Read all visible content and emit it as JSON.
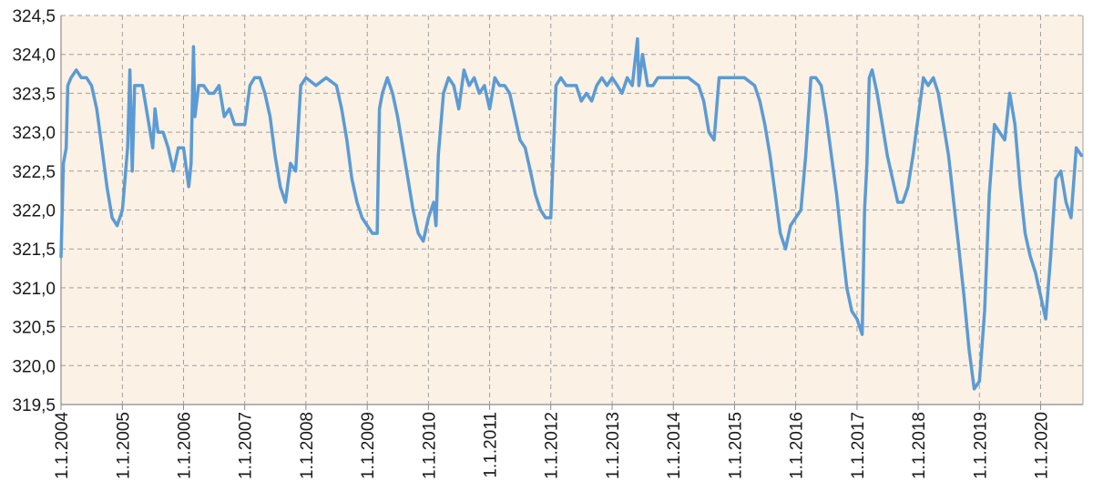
{
  "chart_data": {
    "type": "line",
    "title": "",
    "xlabel": "",
    "ylabel": "",
    "ylim": [
      319.5,
      324.5
    ],
    "yticks": [
      "319,5",
      "320,0",
      "320,5",
      "321,0",
      "321,5",
      "322,0",
      "322,5",
      "323,0",
      "323,5",
      "324,0",
      "324,5"
    ],
    "ytick_values": [
      319.5,
      320.0,
      320.5,
      321.0,
      321.5,
      322.0,
      322.5,
      323.0,
      323.5,
      324.0,
      324.5
    ],
    "xlim": [
      "2004-01-01",
      "2020-09-10"
    ],
    "xticks": [
      "1.1.2004",
      "1.1.2005",
      "1.1.2006",
      "1.1.2007",
      "1.1.2008",
      "1.1.2009",
      "1.1.2010",
      "1.1.2011",
      "1.1.2012",
      "1.1.2013",
      "1.1.2014",
      "1.1.2015",
      "1.1.2016",
      "1.1.2017",
      "1.1.2018",
      "1.1.2019",
      "1.1.2020"
    ],
    "xtick_values": [
      "2004-01-01",
      "2005-01-01",
      "2006-01-01",
      "2007-01-01",
      "2008-01-01",
      "2009-01-01",
      "2010-01-01",
      "2011-01-01",
      "2012-01-01",
      "2013-01-01",
      "2014-01-01",
      "2015-01-01",
      "2016-01-01",
      "2017-01-01",
      "2018-01-01",
      "2019-01-01",
      "2020-01-01"
    ],
    "grid": true,
    "colors": {
      "line": "#5b9bd5",
      "plot_background": "#fbf1e4",
      "grid": "#a0a0a0",
      "axis": "#8c8c8c"
    },
    "series": [
      {
        "values": [
          [
            "2004-01-01",
            321.4
          ],
          [
            "2004-01-15",
            322.6
          ],
          [
            "2004-02-01",
            322.8
          ],
          [
            "2004-02-10",
            323.6
          ],
          [
            "2004-03-01",
            323.7
          ],
          [
            "2004-04-01",
            323.8
          ],
          [
            "2004-05-01",
            323.7
          ],
          [
            "2004-06-01",
            323.7
          ],
          [
            "2004-07-01",
            323.6
          ],
          [
            "2004-08-01",
            323.3
          ],
          [
            "2004-09-01",
            322.8
          ],
          [
            "2004-10-01",
            322.3
          ],
          [
            "2004-11-01",
            321.9
          ],
          [
            "2004-12-01",
            321.8
          ],
          [
            "2005-01-01",
            322.0
          ],
          [
            "2005-02-01",
            322.8
          ],
          [
            "2005-02-15",
            323.8
          ],
          [
            "2005-03-01",
            322.5
          ],
          [
            "2005-03-15",
            323.6
          ],
          [
            "2005-04-01",
            323.6
          ],
          [
            "2005-05-01",
            323.6
          ],
          [
            "2005-06-01",
            323.2
          ],
          [
            "2005-07-01",
            322.8
          ],
          [
            "2005-07-15",
            323.3
          ],
          [
            "2005-08-01",
            323.0
          ],
          [
            "2005-09-01",
            323.0
          ],
          [
            "2005-10-01",
            322.8
          ],
          [
            "2005-11-01",
            322.5
          ],
          [
            "2005-12-01",
            322.8
          ],
          [
            "2006-01-01",
            322.8
          ],
          [
            "2006-02-01",
            322.3
          ],
          [
            "2006-02-15",
            322.6
          ],
          [
            "2006-03-01",
            324.1
          ],
          [
            "2006-03-10",
            323.2
          ],
          [
            "2006-04-01",
            323.6
          ],
          [
            "2006-05-01",
            323.6
          ],
          [
            "2006-06-01",
            323.5
          ],
          [
            "2006-07-01",
            323.5
          ],
          [
            "2006-08-01",
            323.6
          ],
          [
            "2006-09-01",
            323.2
          ],
          [
            "2006-10-01",
            323.3
          ],
          [
            "2006-11-01",
            323.1
          ],
          [
            "2006-12-01",
            323.1
          ],
          [
            "2007-01-01",
            323.1
          ],
          [
            "2007-02-01",
            323.6
          ],
          [
            "2007-03-01",
            323.7
          ],
          [
            "2007-04-01",
            323.7
          ],
          [
            "2007-05-01",
            323.5
          ],
          [
            "2007-06-01",
            323.2
          ],
          [
            "2007-07-01",
            322.7
          ],
          [
            "2007-08-01",
            322.3
          ],
          [
            "2007-09-01",
            322.1
          ],
          [
            "2007-10-01",
            322.6
          ],
          [
            "2007-11-01",
            322.5
          ],
          [
            "2007-12-01",
            323.6
          ],
          [
            "2008-01-01",
            323.7
          ],
          [
            "2008-03-01",
            323.6
          ],
          [
            "2008-05-01",
            323.7
          ],
          [
            "2008-07-01",
            323.6
          ],
          [
            "2008-08-01",
            323.3
          ],
          [
            "2008-09-01",
            322.9
          ],
          [
            "2008-10-01",
            322.4
          ],
          [
            "2008-11-01",
            322.1
          ],
          [
            "2008-12-01",
            321.9
          ],
          [
            "2009-01-01",
            321.8
          ],
          [
            "2009-02-01",
            321.7
          ],
          [
            "2009-03-01",
            321.7
          ],
          [
            "2009-03-15",
            323.3
          ],
          [
            "2009-04-01",
            323.5
          ],
          [
            "2009-05-01",
            323.7
          ],
          [
            "2009-06-01",
            323.5
          ],
          [
            "2009-07-01",
            323.2
          ],
          [
            "2009-08-01",
            322.8
          ],
          [
            "2009-09-01",
            322.4
          ],
          [
            "2009-10-01",
            322.0
          ],
          [
            "2009-11-01",
            321.7
          ],
          [
            "2009-12-01",
            321.6
          ],
          [
            "2010-01-01",
            321.9
          ],
          [
            "2010-02-01",
            322.1
          ],
          [
            "2010-02-15",
            321.8
          ],
          [
            "2010-03-01",
            322.7
          ],
          [
            "2010-04-01",
            323.5
          ],
          [
            "2010-05-01",
            323.7
          ],
          [
            "2010-06-01",
            323.6
          ],
          [
            "2010-07-01",
            323.3
          ],
          [
            "2010-08-01",
            323.8
          ],
          [
            "2010-09-01",
            323.6
          ],
          [
            "2010-10-01",
            323.7
          ],
          [
            "2010-11-01",
            323.5
          ],
          [
            "2010-12-01",
            323.6
          ],
          [
            "2011-01-01",
            323.3
          ],
          [
            "2011-02-01",
            323.7
          ],
          [
            "2011-03-01",
            323.6
          ],
          [
            "2011-04-01",
            323.6
          ],
          [
            "2011-05-01",
            323.5
          ],
          [
            "2011-06-01",
            323.2
          ],
          [
            "2011-07-01",
            322.9
          ],
          [
            "2011-08-01",
            322.8
          ],
          [
            "2011-09-01",
            322.5
          ],
          [
            "2011-10-01",
            322.2
          ],
          [
            "2011-11-01",
            322.0
          ],
          [
            "2011-12-01",
            321.9
          ],
          [
            "2012-01-01",
            321.9
          ],
          [
            "2012-02-01",
            323.6
          ],
          [
            "2012-03-01",
            323.7
          ],
          [
            "2012-04-01",
            323.6
          ],
          [
            "2012-05-01",
            323.6
          ],
          [
            "2012-06-01",
            323.6
          ],
          [
            "2012-07-01",
            323.4
          ],
          [
            "2012-08-01",
            323.5
          ],
          [
            "2012-09-01",
            323.4
          ],
          [
            "2012-10-01",
            323.6
          ],
          [
            "2012-11-01",
            323.7
          ],
          [
            "2012-12-01",
            323.6
          ],
          [
            "2013-01-01",
            323.7
          ],
          [
            "2013-02-01",
            323.6
          ],
          [
            "2013-03-01",
            323.5
          ],
          [
            "2013-04-01",
            323.7
          ],
          [
            "2013-05-01",
            323.6
          ],
          [
            "2013-06-01",
            324.2
          ],
          [
            "2013-06-10",
            323.6
          ],
          [
            "2013-07-01",
            324.0
          ],
          [
            "2013-08-01",
            323.6
          ],
          [
            "2013-09-01",
            323.6
          ],
          [
            "2013-10-01",
            323.7
          ],
          [
            "2013-12-01",
            323.7
          ],
          [
            "2014-02-01",
            323.7
          ],
          [
            "2014-04-01",
            323.7
          ],
          [
            "2014-06-01",
            323.6
          ],
          [
            "2014-07-01",
            323.4
          ],
          [
            "2014-08-01",
            323.0
          ],
          [
            "2014-09-01",
            322.9
          ],
          [
            "2014-10-01",
            323.7
          ],
          [
            "2014-11-01",
            323.7
          ],
          [
            "2015-01-01",
            323.7
          ],
          [
            "2015-03-01",
            323.7
          ],
          [
            "2015-05-01",
            323.6
          ],
          [
            "2015-06-01",
            323.4
          ],
          [
            "2015-07-01",
            323.1
          ],
          [
            "2015-08-01",
            322.7
          ],
          [
            "2015-09-01",
            322.2
          ],
          [
            "2015-10-01",
            321.7
          ],
          [
            "2015-11-01",
            321.5
          ],
          [
            "2015-12-01",
            321.8
          ],
          [
            "2016-01-01",
            321.9
          ],
          [
            "2016-02-01",
            322.0
          ],
          [
            "2016-03-01",
            322.7
          ],
          [
            "2016-04-01",
            323.7
          ],
          [
            "2016-05-01",
            323.7
          ],
          [
            "2016-06-01",
            323.6
          ],
          [
            "2016-07-01",
            323.2
          ],
          [
            "2016-08-01",
            322.7
          ],
          [
            "2016-09-01",
            322.2
          ],
          [
            "2016-10-01",
            321.6
          ],
          [
            "2016-11-01",
            321.0
          ],
          [
            "2016-12-01",
            320.7
          ],
          [
            "2017-01-01",
            320.6
          ],
          [
            "2017-02-01",
            320.4
          ],
          [
            "2017-02-15",
            322.0
          ],
          [
            "2017-03-01",
            322.6
          ],
          [
            "2017-03-15",
            323.7
          ],
          [
            "2017-04-01",
            323.8
          ],
          [
            "2017-05-01",
            323.5
          ],
          [
            "2017-06-01",
            323.1
          ],
          [
            "2017-07-01",
            322.7
          ],
          [
            "2017-08-01",
            322.4
          ],
          [
            "2017-09-01",
            322.1
          ],
          [
            "2017-10-01",
            322.1
          ],
          [
            "2017-11-01",
            322.3
          ],
          [
            "2017-12-01",
            322.7
          ],
          [
            "2018-01-01",
            323.2
          ],
          [
            "2018-02-01",
            323.7
          ],
          [
            "2018-03-01",
            323.6
          ],
          [
            "2018-04-01",
            323.7
          ],
          [
            "2018-05-01",
            323.5
          ],
          [
            "2018-06-01",
            323.1
          ],
          [
            "2018-07-01",
            322.7
          ],
          [
            "2018-08-01",
            322.1
          ],
          [
            "2018-09-01",
            321.5
          ],
          [
            "2018-10-01",
            320.9
          ],
          [
            "2018-11-01",
            320.2
          ],
          [
            "2018-12-01",
            319.7
          ],
          [
            "2019-01-01",
            319.8
          ],
          [
            "2019-02-01",
            320.7
          ],
          [
            "2019-03-01",
            322.2
          ],
          [
            "2019-04-01",
            323.1
          ],
          [
            "2019-05-01",
            323.0
          ],
          [
            "2019-06-01",
            322.9
          ],
          [
            "2019-07-01",
            323.5
          ],
          [
            "2019-08-01",
            323.1
          ],
          [
            "2019-09-01",
            322.3
          ],
          [
            "2019-10-01",
            321.7
          ],
          [
            "2019-11-01",
            321.4
          ],
          [
            "2019-12-01",
            321.2
          ],
          [
            "2020-01-01",
            320.9
          ],
          [
            "2020-02-01",
            320.6
          ],
          [
            "2020-03-01",
            321.4
          ],
          [
            "2020-04-01",
            322.4
          ],
          [
            "2020-05-01",
            322.5
          ],
          [
            "2020-06-01",
            322.1
          ],
          [
            "2020-07-01",
            321.9
          ],
          [
            "2020-08-01",
            322.8
          ],
          [
            "2020-09-01",
            322.7
          ]
        ]
      }
    ]
  }
}
